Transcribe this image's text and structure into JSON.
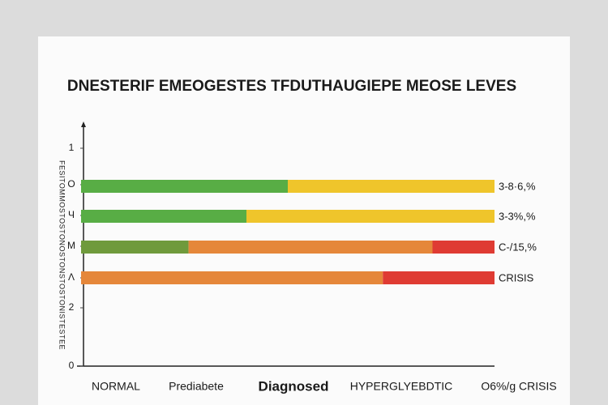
{
  "chart_data": {
    "type": "stacked-bar",
    "title": "DNESTERIF EMEOGESTES TFDUTHAUGIEPE MEOSE LEVES",
    "y_axis_label": "FESITOMMOSTOSTONOSTONSTOSTONISTESTEE",
    "left_labels": [
      "1",
      "O",
      "Ч",
      "M",
      "Λ",
      "2",
      "0"
    ],
    "x_labels": [
      "NORMAL",
      "Prediabete",
      "Diagnosed",
      "HYPERGLYEBDTIC",
      "O6%/g CRISIS"
    ],
    "xlim": [
      0,
      100
    ],
    "bars": [
      {
        "end_label": "3-8·6,%",
        "segments": [
          {
            "color": "#58ad45",
            "value": 50
          },
          {
            "color": "#efc52b",
            "value": 50
          }
        ]
      },
      {
        "end_label": "3-3%,%",
        "segments": [
          {
            "color": "#58ad45",
            "value": 40
          },
          {
            "color": "#efc52b",
            "value": 60
          }
        ]
      },
      {
        "end_label": "C-/15,%",
        "segments": [
          {
            "color": "#6f9a3c",
            "value": 26
          },
          {
            "color": "#e5873a",
            "value": 59
          },
          {
            "color": "#df3b33",
            "value": 15
          }
        ]
      },
      {
        "end_label": "CRISIS",
        "segments": [
          {
            "color": "#e5873a",
            "value": 73
          },
          {
            "color": "#df3b33",
            "value": 27
          }
        ]
      }
    ]
  }
}
